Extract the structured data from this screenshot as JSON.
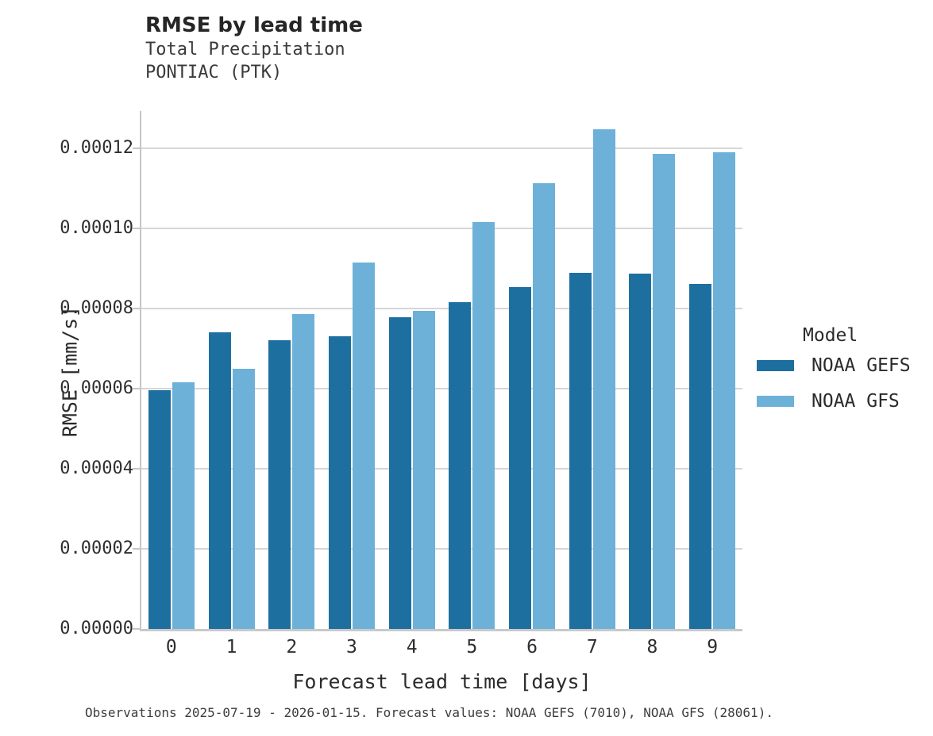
{
  "chart_data": {
    "type": "bar",
    "title": "RMSE by lead time",
    "subtitle1": "Total Precipitation",
    "subtitle2": "PONTIAC (PTK)",
    "xlabel": "Forecast lead time [days]",
    "ylabel": "RMSE [mm/s]",
    "categories": [
      "0",
      "1",
      "2",
      "3",
      "4",
      "5",
      "6",
      "7",
      "8",
      "9"
    ],
    "series": [
      {
        "name": "NOAA GEFS",
        "color": "#1d6f9f",
        "values": [
          5.97e-05,
          7.4e-05,
          7.2e-05,
          7.3e-05,
          7.78e-05,
          8.16e-05,
          8.54e-05,
          8.9e-05,
          8.88e-05,
          8.62e-05
        ]
      },
      {
        "name": "NOAA GFS",
        "color": "#6db1d8",
        "values": [
          6.16e-05,
          6.5e-05,
          7.86e-05,
          9.15e-05,
          7.94e-05,
          0.0001015,
          0.0001113,
          0.0001248,
          0.0001186,
          0.000119
        ]
      }
    ],
    "ylim": [
      0,
      0.00013
    ],
    "yticks": {
      "values": [
        0,
        2e-05,
        4e-05,
        6e-05,
        8e-05,
        0.0001,
        0.00012
      ],
      "labels": [
        "0.00000",
        "0.00002",
        "0.00004",
        "0.00006",
        "0.00008",
        "0.00010",
        "0.00012"
      ]
    },
    "grid": "horizontal",
    "legend_title": "Model",
    "legend_position": "right",
    "caption": "Observations 2025-07-19 - 2026-01-15. Forecast values: NOAA GEFS (7010), NOAA GFS (28061).",
    "colors": {
      "gridline": "#d6d6d6",
      "spine": "#c6c6c6",
      "title_text": "#262626",
      "body_text": "#2e2e2e"
    }
  }
}
